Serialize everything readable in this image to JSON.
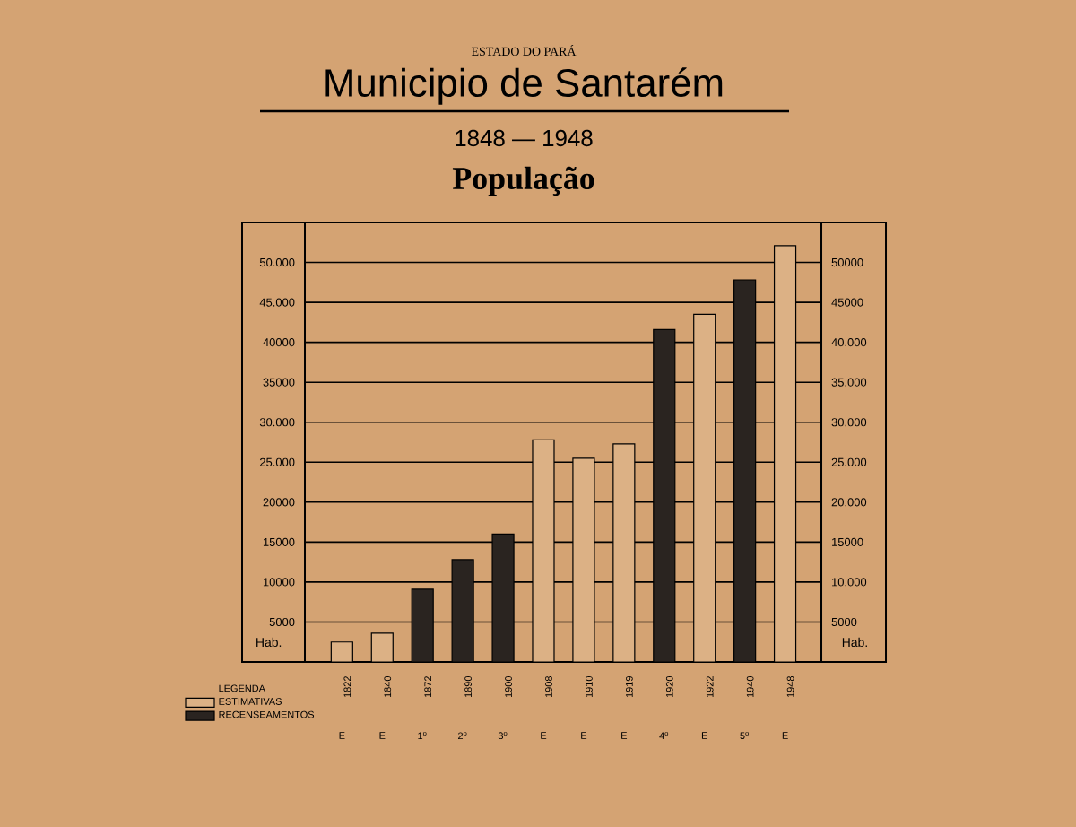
{
  "chart_data": {
    "type": "bar",
    "title": "Municipio de Santarém",
    "subtitle": "1848 — 1948",
    "categories": [
      "1822",
      "1840",
      "1872",
      "1890",
      "1900",
      "1908",
      "1910",
      "1919",
      "1920",
      "1922",
      "1940",
      "1948"
    ],
    "series": [
      {
        "name": "ESTIMATIVAS",
        "color": "#dcb185",
        "values": [
          2500,
          3600,
          null,
          null,
          null,
          27800,
          25500,
          27300,
          null,
          43500,
          null,
          52100
        ]
      },
      {
        "name": "RECENSEAMENTOS",
        "color": "#2a2420",
        "values": [
          null,
          null,
          9100,
          12800,
          16000,
          null,
          null,
          null,
          41600,
          null,
          47800,
          null
        ]
      }
    ],
    "legend_title": "LEGENDA",
    "legend": "bottom left",
    "grid": "y",
    "ylabel": "Hab.",
    "y2label": "Hab.",
    "ylim": [
      0,
      55000
    ],
    "y2lim": [
      0,
      55000
    ],
    "yticks": [
      {
        "value": 5000,
        "label": "5000"
      },
      {
        "value": 10000,
        "label": "10000"
      },
      {
        "value": 15000,
        "label": "15000"
      },
      {
        "value": 20000,
        "label": "20000"
      },
      {
        "value": 25000,
        "label": "25.000"
      },
      {
        "value": 30000,
        "label": "30.000"
      },
      {
        "value": 35000,
        "label": "35000"
      },
      {
        "value": 40000,
        "label": "40000"
      },
      {
        "value": 45000,
        "label": "45.000"
      },
      {
        "value": 50000,
        "label": "50.000"
      }
    ],
    "y2ticks": [
      {
        "value": 5000,
        "label": "5000"
      },
      {
        "value": 10000,
        "label": "10.000"
      },
      {
        "value": 15000,
        "label": "15000"
      },
      {
        "value": 20000,
        "label": "20.000"
      },
      {
        "value": 25000,
        "label": "25.000"
      },
      {
        "value": 30000,
        "label": "30.000"
      },
      {
        "value": 35000,
        "label": "35.000"
      },
      {
        "value": 40000,
        "label": "40.000"
      },
      {
        "value": 45000,
        "label": "45000"
      },
      {
        "value": 50000,
        "label": "50000"
      }
    ],
    "annotations": [
      "ESTADO DO PARÁ",
      "População",
      "E",
      "E",
      "1$^{o}$",
      "2$^{o}$",
      "3$^{o}$",
      "E",
      "E",
      "E",
      "4$^{o}$",
      "E",
      "5$^{o}$",
      "E"
    ]
  }
}
